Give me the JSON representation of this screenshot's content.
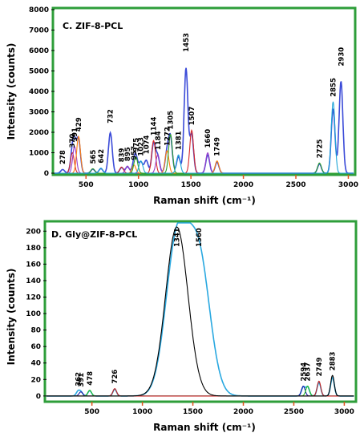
{
  "chart_data": [
    {
      "type": "line",
      "title": "C. ZIF-8-PCL",
      "xlabel": "Raman shift (cm⁻¹)",
      "ylabel": "Intensity (counts)",
      "xlim": [
        200,
        3050
      ],
      "ylim": [
        0,
        8000
      ],
      "x_ticks": [
        500,
        1000,
        1500,
        2000,
        2500,
        3000
      ],
      "y_ticks": [
        0,
        1000,
        2000,
        3000,
        4000,
        5000,
        6000,
        7000,
        8000
      ],
      "frame_color": "#2e9e3a",
      "peak_labels": [
        "278",
        "370",
        "391",
        "429",
        "565",
        "642",
        "732",
        "839",
        "895",
        "957",
        "975",
        "1023",
        "1074",
        "1144",
        "1184",
        "1272",
        "1305",
        "1381",
        "1453",
        "1507",
        "1660",
        "1749",
        "2725",
        "2855",
        "2930"
      ],
      "peak_positions": [
        278,
        370,
        391,
        429,
        565,
        642,
        732,
        839,
        895,
        957,
        975,
        1023,
        1074,
        1144,
        1184,
        1272,
        1305,
        1381,
        1453,
        1507,
        1660,
        1749,
        2725,
        2855,
        2930
      ],
      "peak_heights": [
        200,
        1000,
        1300,
        1800,
        220,
        250,
        2200,
        300,
        350,
        400,
        800,
        600,
        700,
        1600,
        900,
        1100,
        1900,
        900,
        5700,
        2100,
        1000,
        600,
        500,
        3500,
        5000
      ],
      "series": [
        {
          "values": [],
          "color": "#3b4bd8"
        },
        {
          "values": [],
          "color": "#d62728"
        },
        {
          "values": [],
          "color": "#9a3cc9"
        },
        {
          "values": [],
          "color": "#ff7f0e"
        },
        {
          "values": [],
          "color": "#2ca02c"
        },
        {
          "values": [],
          "color": "#1fa5d6"
        }
      ]
    },
    {
      "type": "line",
      "title": "D. Gly@ZIF-8-PCL",
      "xlabel": "Raman shift (cm⁻¹)",
      "ylabel": "Intensity (counts)",
      "xlim": [
        50,
        3100
      ],
      "ylim": [
        -5,
        210
      ],
      "x_ticks": [
        500,
        1000,
        1500,
        2000,
        2500,
        3000
      ],
      "y_ticks": [
        0,
        20,
        40,
        60,
        80,
        100,
        120,
        140,
        160,
        180,
        200
      ],
      "frame_color": "#2e9e3a",
      "peak_labels": [
        "362",
        "391",
        "478",
        "726",
        "1341",
        "1560",
        "2594",
        "2637",
        "2749",
        "2883"
      ],
      "peak_positions": [
        362,
        391,
        478,
        726,
        1341,
        1560,
        2594,
        2637,
        2749,
        2883
      ],
      "peak_heights": [
        6,
        5,
        7,
        9,
        205,
        183,
        12,
        12,
        18,
        25
      ],
      "series": [
        {
          "values": [],
          "color": "#29a8e0"
        },
        {
          "values": [],
          "color": "#1a1aa6"
        },
        {
          "values": [],
          "color": "#22c022"
        },
        {
          "values": [],
          "color": "#c41e1e"
        },
        {
          "values": [],
          "color": "#000000"
        }
      ]
    }
  ]
}
